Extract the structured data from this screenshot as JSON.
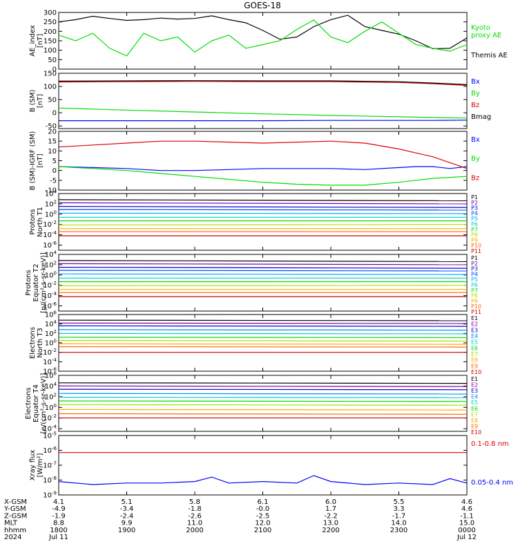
{
  "title": "GOES-18",
  "chart_data": [
    {
      "type": "line",
      "ylabel": [
        "AE_index",
        "[nT]"
      ],
      "ylim": [
        0,
        300
      ],
      "yticks": [
        "0",
        "50",
        "100",
        "150",
        "200",
        "250",
        "300"
      ],
      "x": [
        0,
        0.25,
        0.5,
        0.75,
        1,
        1.25,
        1.5,
        1.75,
        2,
        2.25,
        2.5,
        2.75,
        3,
        3.25,
        3.5,
        3.75,
        4,
        4.25,
        4.5,
        4.75,
        5,
        5.25,
        5.5,
        5.75,
        6
      ],
      "series": [
        {
          "name": "Themis AE",
          "color": "#000000",
          "values": [
            250,
            262,
            280,
            268,
            258,
            262,
            270,
            265,
            268,
            282,
            262,
            245,
            205,
            158,
            170,
            225,
            262,
            285,
            225,
            205,
            185,
            150,
            108,
            110,
            165
          ]
        },
        {
          "name": "Kyoto proxy AE",
          "color": "#00dd00",
          "values": [
            180,
            150,
            190,
            110,
            70,
            190,
            150,
            170,
            90,
            150,
            180,
            110,
            130,
            150,
            210,
            260,
            170,
            140,
            200,
            250,
            190,
            130,
            110,
            95,
            130
          ]
        }
      ],
      "legend": [
        {
          "text": "Kyoto",
          "color": "#00dd00"
        },
        {
          "text": "proxy AE",
          "color": "#00dd00"
        },
        {
          "text": "Themis AE",
          "color": "#000000"
        }
      ]
    },
    {
      "type": "line",
      "ylabel": [
        "B (SM)",
        "[nT]"
      ],
      "ylim": [
        -60,
        150
      ],
      "yticks": [
        "-50",
        "0",
        "50",
        "100",
        "150"
      ],
      "x": [
        0,
        1,
        2,
        3,
        4,
        5,
        5.5,
        6
      ],
      "series": [
        {
          "name": "Bx",
          "color": "#0000ff",
          "values": [
            -30,
            -30,
            -30,
            -30,
            -29,
            -29,
            -29,
            -28
          ]
        },
        {
          "name": "By",
          "color": "#00dd00",
          "values": [
            18,
            10,
            3,
            -4,
            -10,
            -15,
            -18,
            -20
          ]
        },
        {
          "name": "Bz",
          "color": "#dd0000",
          "values": [
            117,
            118,
            119,
            118,
            118,
            115,
            110,
            104
          ]
        },
        {
          "name": "Bmag",
          "color": "#000000",
          "values": [
            120,
            121,
            122,
            121,
            121,
            118,
            113,
            107
          ]
        }
      ],
      "legend": [
        {
          "text": "Bx",
          "color": "#0000ff"
        },
        {
          "text": "By",
          "color": "#00dd00"
        },
        {
          "text": "Bz",
          "color": "#dd0000"
        },
        {
          "text": "Bmag",
          "color": "#000000"
        }
      ]
    },
    {
      "type": "line",
      "ylabel": [
        "B (SM)-IGRF (SM)",
        "[nT]"
      ],
      "ylim": [
        -10,
        20
      ],
      "yticks": [
        "-10",
        "-5",
        "0",
        "5",
        "10",
        "15",
        "20"
      ],
      "x": [
        0,
        0.5,
        1,
        1.5,
        2,
        2.5,
        3,
        3.5,
        4,
        4.5,
        5,
        5.25,
        5.5,
        5.75,
        6
      ],
      "series": [
        {
          "name": "Bx",
          "color": "#0000ff",
          "values": [
            2,
            1.5,
            1,
            0,
            0,
            0.5,
            1,
            1,
            1,
            0.5,
            1.5,
            2,
            2,
            1,
            2
          ]
        },
        {
          "name": "By",
          "color": "#00dd00",
          "values": [
            2,
            1,
            0,
            -1.5,
            -3,
            -4.5,
            -6,
            -7,
            -7.5,
            -7.5,
            -6,
            -5,
            -4,
            -3.5,
            -3
          ]
        },
        {
          "name": "Bz",
          "color": "#dd0000",
          "values": [
            12,
            13,
            14,
            15,
            15,
            14.5,
            14,
            14.5,
            15,
            14,
            11,
            9,
            7,
            4,
            1
          ]
        }
      ],
      "legend": [
        {
          "text": "Bx",
          "color": "#0000ff"
        },
        {
          "text": "By",
          "color": "#00dd00"
        },
        {
          "text": "Bz",
          "color": "#dd0000"
        }
      ]
    },
    {
      "type": "line",
      "log": true,
      "ylabel": [
        "Protons",
        "North T1"
      ],
      "ylim": [
        -7,
        4
      ],
      "yticks": [
        "10^4",
        "10^2",
        "10^0",
        "10^-2",
        "10^-4",
        "10^-6"
      ],
      "x": [
        0,
        6
      ],
      "series": [
        {
          "name": "P1",
          "color": "#000000",
          "values": [
            2.8,
            2.6
          ]
        },
        {
          "name": "P2",
          "color": "#7700aa",
          "values": [
            2.2,
            2.0
          ]
        },
        {
          "name": "P3",
          "color": "#0000cc",
          "values": [
            1.5,
            1.3
          ]
        },
        {
          "name": "P4",
          "color": "#0044ff",
          "values": [
            0.9,
            0.8
          ]
        },
        {
          "name": "P5",
          "color": "#00aaff",
          "values": [
            0.2,
            0.1
          ]
        },
        {
          "name": "P6",
          "color": "#00cccc",
          "values": [
            -0.6,
            -0.6
          ]
        },
        {
          "name": "P7",
          "color": "#00dd00",
          "values": [
            -1.3,
            -1.3
          ]
        },
        {
          "name": "P8",
          "color": "#bbdd00",
          "values": [
            -2.1,
            -2.0
          ]
        },
        {
          "name": "P9",
          "color": "#ffaa00",
          "values": [
            -2.8,
            -2.8
          ]
        },
        {
          "name": "P10",
          "color": "#ff6600",
          "values": [
            -3.4,
            -3.4
          ]
        },
        {
          "name": "P11",
          "color": "#cc0000",
          "values": [
            -4.2,
            -4.2
          ]
        }
      ],
      "legend": [
        {
          "text": "P1",
          "color": "#000000"
        },
        {
          "text": "P2",
          "color": "#7700aa"
        },
        {
          "text": "P3",
          "color": "#0000cc"
        },
        {
          "text": "P4",
          "color": "#0044ff"
        },
        {
          "text": "P5",
          "color": "#00aaff"
        },
        {
          "text": "P6",
          "color": "#00cccc"
        },
        {
          "text": "P7",
          "color": "#00dd00"
        },
        {
          "text": "P8",
          "color": "#bbdd00"
        },
        {
          "text": "P9",
          "color": "#ffaa00"
        },
        {
          "text": "P10",
          "color": "#ff6600"
        },
        {
          "text": "P11",
          "color": "#cc0000"
        }
      ]
    },
    {
      "type": "line",
      "log": true,
      "ylabel": [
        "Protons",
        "Equator T2",
        "[p/(cm²-s-sr-keV)]"
      ],
      "ylim": [
        -7,
        4
      ],
      "yticks": [
        "10^4",
        "10^2",
        "10^0",
        "10^-2",
        "10^-4",
        "10^-6"
      ],
      "x": [
        0,
        6
      ],
      "series": [
        {
          "name": "P1",
          "color": "#000000",
          "values": [
            2.8,
            2.6
          ]
        },
        {
          "name": "P2",
          "color": "#7700aa",
          "values": [
            2.2,
            2.0
          ]
        },
        {
          "name": "P3",
          "color": "#0000cc",
          "values": [
            1.5,
            1.3
          ]
        },
        {
          "name": "P4",
          "color": "#0044ff",
          "values": [
            0.9,
            0.8
          ]
        },
        {
          "name": "P5",
          "color": "#00aaff",
          "values": [
            0.2,
            0.1
          ]
        },
        {
          "name": "P6",
          "color": "#00cccc",
          "values": [
            -0.6,
            -0.6
          ]
        },
        {
          "name": "P7",
          "color": "#00dd00",
          "values": [
            -1.3,
            -1.3
          ]
        },
        {
          "name": "P8",
          "color": "#bbdd00",
          "values": [
            -2.1,
            -2.0
          ]
        },
        {
          "name": "P9",
          "color": "#ffaa00",
          "values": [
            -2.8,
            -2.8
          ]
        },
        {
          "name": "P10",
          "color": "#ff6600",
          "values": [
            -3.4,
            -3.4
          ]
        },
        {
          "name": "P11",
          "color": "#cc0000",
          "values": [
            -4.2,
            -4.2
          ]
        }
      ],
      "legend": [
        {
          "text": "P1",
          "color": "#000000"
        },
        {
          "text": "P2",
          "color": "#7700aa"
        },
        {
          "text": "P3",
          "color": "#0000cc"
        },
        {
          "text": "P4",
          "color": "#0044ff"
        },
        {
          "text": "P5",
          "color": "#00aaff"
        },
        {
          "text": "P6",
          "color": "#00cccc"
        },
        {
          "text": "P7",
          "color": "#00dd00"
        },
        {
          "text": "P8",
          "color": "#bbdd00"
        },
        {
          "text": "P9",
          "color": "#ffaa00"
        },
        {
          "text": "P10",
          "color": "#ff6600"
        },
        {
          "text": "P11",
          "color": "#cc0000"
        }
      ]
    },
    {
      "type": "line",
      "log": true,
      "ylabel": [
        "Electrons",
        "North T3"
      ],
      "ylim": [
        -6,
        6
      ],
      "yticks": [
        "10^6",
        "10^4",
        "10^2",
        "10^0",
        "10^-2",
        "10^-4",
        "10^-6"
      ],
      "x": [
        0,
        6
      ],
      "series": [
        {
          "name": "E1",
          "color": "#000000",
          "values": [
            4.8,
            4.7
          ]
        },
        {
          "name": "E2",
          "color": "#7700aa",
          "values": [
            4.2,
            4.1
          ]
        },
        {
          "name": "E3",
          "color": "#0000cc",
          "values": [
            3.6,
            3.5
          ]
        },
        {
          "name": "E4",
          "color": "#0088ff",
          "values": [
            2.8,
            2.7
          ]
        },
        {
          "name": "E5",
          "color": "#00cccc",
          "values": [
            2.0,
            1.9
          ]
        },
        {
          "name": "E6",
          "color": "#00dd00",
          "values": [
            1.2,
            1.1
          ]
        },
        {
          "name": "E7",
          "color": "#aadd00",
          "values": [
            0.5,
            0.4
          ]
        },
        {
          "name": "E8",
          "color": "#ffaa00",
          "values": [
            -0.2,
            -0.3
          ]
        },
        {
          "name": "E9",
          "color": "#ff6600",
          "values": [
            -0.8,
            -0.9
          ]
        },
        {
          "name": "E10",
          "color": "#cc0000",
          "values": [
            -2.0,
            -2.0
          ]
        }
      ],
      "legend": [
        {
          "text": "E1",
          "color": "#000000"
        },
        {
          "text": "E2",
          "color": "#7700aa"
        },
        {
          "text": "E3",
          "color": "#0000cc"
        },
        {
          "text": "E4",
          "color": "#0088ff"
        },
        {
          "text": "E5",
          "color": "#00cccc"
        },
        {
          "text": "E6",
          "color": "#00dd00"
        },
        {
          "text": "E7",
          "color": "#aadd00"
        },
        {
          "text": "E8",
          "color": "#ffaa00"
        },
        {
          "text": "E9",
          "color": "#ff6600"
        },
        {
          "text": "E10",
          "color": "#cc0000"
        }
      ]
    },
    {
      "type": "line",
      "log": true,
      "ylabel": [
        "Electrons",
        "Equator T4",
        "[e/(cm²-s-sr-keV)]"
      ],
      "ylim": [
        -4.5,
        6
      ],
      "yticks": [
        "10^6",
        "10^4",
        "10^2",
        "10^0",
        "10^-2",
        "10^-4"
      ],
      "x": [
        0,
        6
      ],
      "series": [
        {
          "name": "E1",
          "color": "#000000",
          "values": [
            4.6,
            4.5
          ]
        },
        {
          "name": "E2",
          "color": "#7700aa",
          "values": [
            4.0,
            3.9
          ]
        },
        {
          "name": "E3",
          "color": "#0000cc",
          "values": [
            3.4,
            3.3
          ]
        },
        {
          "name": "E4",
          "color": "#0088ff",
          "values": [
            2.6,
            2.5
          ]
        },
        {
          "name": "E5",
          "color": "#00cccc",
          "values": [
            1.9,
            1.8
          ]
        },
        {
          "name": "E6",
          "color": "#00dd00",
          "values": [
            1.2,
            1.1
          ]
        },
        {
          "name": "E7",
          "color": "#aadd00",
          "values": [
            0.5,
            0.4
          ]
        },
        {
          "name": "E8",
          "color": "#ffaa00",
          "values": [
            -0.4,
            -0.5
          ]
        },
        {
          "name": "E9",
          "color": "#ff6600",
          "values": [
            -1.2,
            -1.3
          ]
        },
        {
          "name": "E10",
          "color": "#cc0000",
          "values": [
            -2.0,
            -2.0
          ]
        }
      ],
      "legend": [
        {
          "text": "E1",
          "color": "#000000"
        },
        {
          "text": "E2",
          "color": "#7700aa"
        },
        {
          "text": "E3",
          "color": "#0000cc"
        },
        {
          "text": "E4",
          "color": "#0088ff"
        },
        {
          "text": "E5",
          "color": "#00cccc"
        },
        {
          "text": "E6",
          "color": "#00dd00"
        },
        {
          "text": "E7",
          "color": "#aadd00"
        },
        {
          "text": "E8",
          "color": "#ffaa00"
        },
        {
          "text": "E9",
          "color": "#ff6600"
        },
        {
          "text": "E10",
          "color": "#cc0000"
        }
      ]
    },
    {
      "type": "line",
      "log": true,
      "ylabel": [
        "Xray flux",
        "[W/m²]"
      ],
      "ylim": [
        -9,
        -5
      ],
      "yticks": [
        "10^-5",
        "10^-6",
        "10^-7",
        "10^-8",
        "10^-9"
      ],
      "x": [
        0,
        0.5,
        1,
        1.5,
        2,
        2.25,
        2.5,
        3,
        3.5,
        3.75,
        4,
        4.5,
        5,
        5.5,
        5.75,
        6
      ],
      "series": [
        {
          "name": "0.1-0.8 nm",
          "color": "#dd0000",
          "values": [
            -6.15,
            -6.15,
            -6.15,
            -6.15,
            -6.15,
            -6.15,
            -6.15,
            -6.15,
            -6.15,
            -6.15,
            -6.15,
            -6.15,
            -6.15,
            -6.15,
            -6.15,
            -6.15
          ]
        },
        {
          "name": "0.05-0.4 nm",
          "color": "#0000ff",
          "values": [
            -8.1,
            -8.3,
            -8.2,
            -8.2,
            -8.1,
            -7.8,
            -8.2,
            -8.1,
            -8.2,
            -7.7,
            -8.1,
            -8.3,
            -8.2,
            -8.3,
            -7.9,
            -8.2
          ]
        }
      ],
      "legend": [
        {
          "text": "0.1-0.8 nm",
          "color": "#dd0000"
        },
        {
          "text": "0.05-0.4 nm",
          "color": "#0000ff"
        }
      ]
    }
  ],
  "ephemeris": {
    "labels": [
      "X-GSM",
      "Y-GSM",
      "Z-GSM",
      "MLT",
      "hhmm",
      "2024"
    ],
    "columns": [
      [
        "4.1",
        "-4.9",
        "-1.9",
        "8.8",
        "1800",
        "Jul 11"
      ],
      [
        "5.1",
        "-3.4",
        "-2.4",
        "9.9",
        "1900",
        ""
      ],
      [
        "5.8",
        "-1.8",
        "-2.6",
        "11.0",
        "2000",
        ""
      ],
      [
        "6.1",
        "-0.0",
        "-2.5",
        "12.0",
        "2100",
        ""
      ],
      [
        "6.0",
        "1.7",
        "-2.2",
        "13.0",
        "2200",
        ""
      ],
      [
        "5.5",
        "3.3",
        "-1.7",
        "14.0",
        "2300",
        ""
      ],
      [
        "4.6",
        "4.6",
        "-1.1",
        "15.0",
        "0000",
        "Jul 12"
      ]
    ]
  }
}
